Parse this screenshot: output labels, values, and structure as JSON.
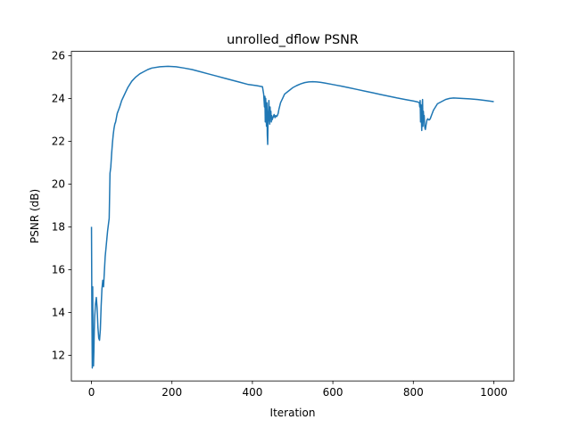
{
  "chart_data": {
    "type": "line",
    "title": "unrolled_dflow PSNR",
    "xlabel": "Iteration",
    "ylabel": "PSNR (dB)",
    "xlim": [
      -50,
      1050
    ],
    "ylim": [
      10.8,
      26.2
    ],
    "xticks": [
      0,
      200,
      400,
      600,
      800,
      1000
    ],
    "yticks": [
      12,
      14,
      16,
      18,
      20,
      22,
      24,
      26
    ],
    "grid": false,
    "color": "#1f77b4",
    "series": [
      {
        "x": [
          0,
          1,
          2,
          3,
          4,
          5,
          6,
          7,
          8,
          10,
          12,
          14,
          16,
          18,
          20,
          22,
          24,
          26,
          28,
          30,
          32,
          34,
          36,
          38,
          40,
          42,
          44,
          46,
          48,
          50,
          52,
          54,
          56,
          58,
          60,
          62,
          64,
          66,
          68,
          70,
          75,
          80,
          85,
          90,
          100,
          110,
          120,
          130,
          140,
          150,
          170,
          190,
          210,
          230,
          250,
          270,
          290,
          310,
          330,
          350,
          370,
          390,
          410,
          425,
          428,
          430,
          431,
          432,
          433,
          434,
          435,
          436,
          437,
          438,
          439,
          440,
          441,
          442,
          443,
          444,
          445,
          446,
          447,
          448,
          449,
          450,
          452,
          454,
          456,
          458,
          460,
          462,
          464,
          466,
          468,
          470,
          475,
          480,
          490,
          500,
          510,
          520,
          530,
          540,
          550,
          560,
          570,
          580,
          600,
          620,
          640,
          660,
          680,
          700,
          720,
          740,
          760,
          780,
          800,
          810,
          815,
          816,
          817,
          818,
          819,
          820,
          821,
          822,
          823,
          824,
          825,
          826,
          827,
          828,
          829,
          830,
          832,
          834,
          836,
          838,
          840,
          842,
          844,
          846,
          848,
          850,
          855,
          860,
          870,
          880,
          890,
          900,
          920,
          940,
          960,
          980,
          1000
        ],
        "y": [
          18.0,
          14.0,
          11.4,
          15.2,
          12.0,
          11.5,
          12.2,
          13.2,
          13.8,
          14.4,
          14.7,
          14.2,
          13.3,
          12.8,
          12.7,
          13.2,
          14.3,
          15.1,
          15.5,
          15.2,
          15.9,
          16.6,
          17.0,
          17.4,
          17.8,
          18.1,
          18.4,
          20.5,
          20.8,
          21.4,
          21.9,
          22.3,
          22.6,
          22.8,
          22.9,
          23.1,
          23.3,
          23.4,
          23.5,
          23.6,
          23.9,
          24.1,
          24.3,
          24.5,
          24.8,
          25.0,
          25.15,
          25.25,
          25.35,
          25.42,
          25.48,
          25.5,
          25.48,
          25.42,
          25.35,
          25.25,
          25.15,
          25.05,
          24.95,
          24.85,
          24.75,
          24.65,
          24.6,
          24.55,
          24.2,
          23.6,
          24.1,
          22.9,
          24.0,
          23.2,
          22.7,
          23.8,
          22.3,
          21.85,
          23.2,
          23.5,
          23.9,
          23.0,
          22.8,
          23.6,
          23.1,
          23.4,
          22.9,
          23.2,
          23.0,
          23.05,
          23.15,
          23.25,
          23.1,
          23.2,
          23.15,
          23.2,
          23.3,
          23.5,
          23.65,
          23.8,
          24.0,
          24.2,
          24.35,
          24.5,
          24.6,
          24.68,
          24.74,
          24.77,
          24.78,
          24.77,
          24.75,
          24.72,
          24.65,
          24.58,
          24.5,
          24.42,
          24.34,
          24.26,
          24.18,
          24.1,
          24.02,
          23.95,
          23.88,
          23.84,
          23.8,
          23.6,
          23.9,
          22.9,
          23.7,
          23.1,
          22.5,
          23.6,
          23.95,
          22.7,
          23.4,
          23.0,
          23.2,
          22.8,
          22.6,
          22.55,
          22.8,
          23.0,
          23.05,
          23.0,
          23.0,
          23.05,
          23.15,
          23.25,
          23.35,
          23.45,
          23.6,
          23.75,
          23.85,
          23.95,
          24.0,
          24.02,
          24.0,
          23.98,
          23.95,
          23.9,
          23.85
        ]
      }
    ]
  }
}
